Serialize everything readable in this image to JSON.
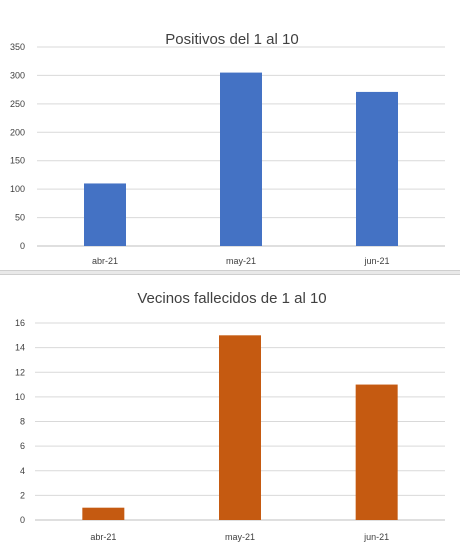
{
  "chart_data": [
    {
      "type": "bar",
      "title": "Positivos del 1 al 10",
      "categories": [
        "abr-21",
        "may-21",
        "jun-21"
      ],
      "values": [
        110,
        305,
        271
      ],
      "ylim": [
        0,
        350
      ],
      "yticks": [
        0,
        50,
        100,
        150,
        200,
        250,
        300,
        350
      ],
      "grid": true,
      "color": "#4472C4"
    },
    {
      "type": "bar",
      "title": "Vecinos fallecidos de 1 al 10",
      "categories": [
        "abr-21",
        "may-21",
        "jun-21"
      ],
      "values": [
        1,
        15,
        11
      ],
      "ylim": [
        0,
        16
      ],
      "yticks": [
        0,
        2,
        4,
        6,
        8,
        10,
        12,
        14,
        16
      ],
      "grid": true,
      "color": "#C55A11"
    }
  ]
}
